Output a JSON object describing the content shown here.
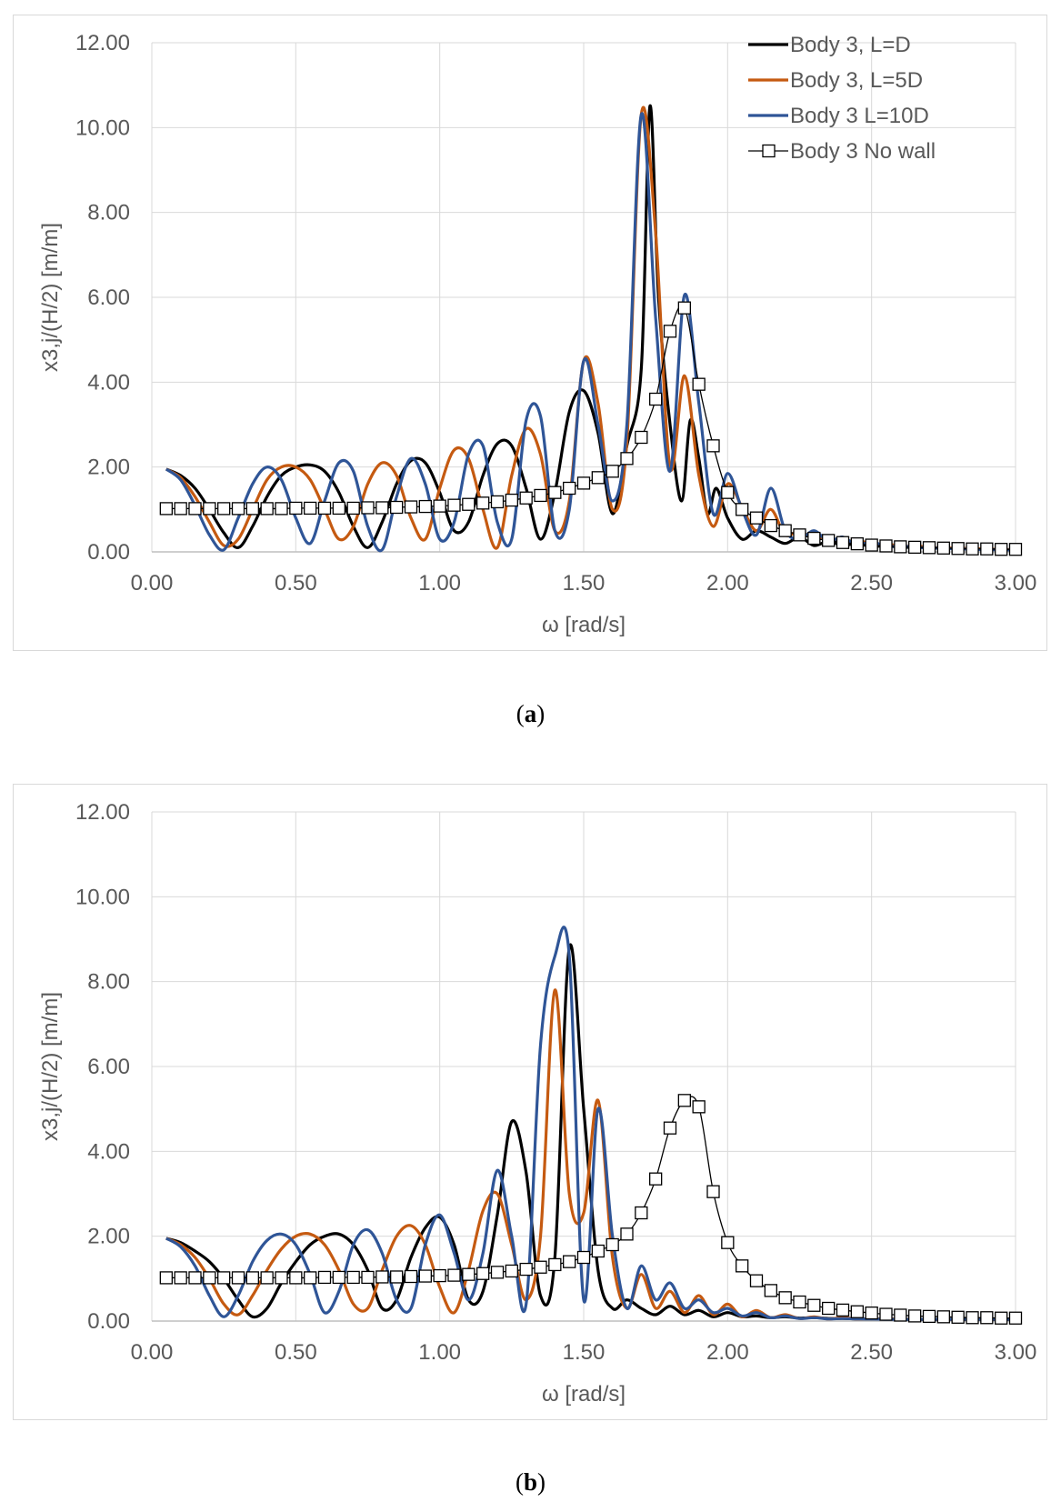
{
  "figure": {
    "caption_a": "a",
    "caption_b": "b"
  },
  "chart_data": [
    {
      "type": "line",
      "panel": "a",
      "title": "",
      "xlabel": "ω  [rad/s]",
      "ylabel": "x3,j/(H/2)  [m/m]",
      "xlim": [
        0,
        3
      ],
      "ylim": [
        0,
        12
      ],
      "xticks": [
        "0.00",
        "0.50",
        "1.00",
        "1.50",
        "2.00",
        "2.50",
        "3.00"
      ],
      "yticks": [
        "0.00",
        "2.00",
        "4.00",
        "6.00",
        "8.00",
        "10.00",
        "12.00"
      ],
      "grid": true,
      "legend_position": "top-right",
      "series": [
        {
          "name": "Body 3, L=D",
          "color": "#000000",
          "x": [
            0.05,
            0.1,
            0.15,
            0.2,
            0.25,
            0.3,
            0.35,
            0.4,
            0.45,
            0.5,
            0.55,
            0.6,
            0.65,
            0.7,
            0.75,
            0.8,
            0.85,
            0.9,
            0.95,
            1.0,
            1.05,
            1.1,
            1.15,
            1.2,
            1.25,
            1.3,
            1.35,
            1.4,
            1.45,
            1.5,
            1.55,
            1.6,
            1.65,
            1.7,
            1.73,
            1.76,
            1.8,
            1.84,
            1.87,
            1.9,
            1.93,
            1.96,
            2.0,
            2.05,
            2.1,
            2.15,
            2.2,
            2.25,
            2.3,
            2.35,
            2.4,
            2.45,
            2.5,
            2.55,
            2.6,
            2.65,
            2.7,
            2.75,
            2.8,
            2.85,
            2.9,
            2.95,
            3.0
          ],
          "y": [
            1.95,
            1.8,
            1.5,
            1.0,
            0.45,
            0.1,
            0.6,
            1.3,
            1.8,
            2.0,
            2.05,
            1.9,
            1.4,
            0.6,
            0.1,
            0.7,
            1.6,
            2.15,
            2.1,
            1.4,
            0.5,
            0.7,
            1.8,
            2.55,
            2.5,
            1.5,
            0.3,
            1.4,
            3.3,
            3.8,
            2.8,
            0.9,
            2.5,
            4.3,
            10.5,
            6.0,
            3.0,
            1.2,
            3.1,
            2.2,
            0.9,
            1.5,
            0.8,
            0.3,
            0.5,
            0.35,
            0.2,
            0.35,
            0.15,
            0.25,
            0.15,
            0.2,
            0.12,
            0.15,
            0.1,
            0.12,
            0.08,
            0.1,
            0.07,
            0.08,
            0.06,
            0.06,
            0.05
          ]
        },
        {
          "name": "Body 3, L=5D",
          "color": "#C55A11",
          "x": [
            0.05,
            0.1,
            0.15,
            0.2,
            0.25,
            0.3,
            0.35,
            0.4,
            0.45,
            0.5,
            0.55,
            0.6,
            0.65,
            0.7,
            0.75,
            0.8,
            0.85,
            0.9,
            0.95,
            1.0,
            1.05,
            1.1,
            1.15,
            1.2,
            1.25,
            1.3,
            1.35,
            1.4,
            1.45,
            1.5,
            1.55,
            1.6,
            1.65,
            1.7,
            1.75,
            1.8,
            1.85,
            1.9,
            1.95,
            2.0,
            2.05,
            2.1,
            2.15,
            2.2,
            2.25,
            2.3,
            2.35,
            2.4,
            2.45,
            2.5,
            2.55,
            2.6,
            2.65,
            2.7,
            2.75,
            2.8,
            2.85,
            2.9,
            2.95,
            3.0
          ],
          "y": [
            1.95,
            1.75,
            1.3,
            0.7,
            0.15,
            0.3,
            1.0,
            1.7,
            2.0,
            2.0,
            1.7,
            1.0,
            0.3,
            0.6,
            1.6,
            2.1,
            1.8,
            0.8,
            0.3,
            1.5,
            2.4,
            2.2,
            1.0,
            0.1,
            1.8,
            2.9,
            2.3,
            0.5,
            1.2,
            4.5,
            3.5,
            1.0,
            2.6,
            10.3,
            7.5,
            2.0,
            4.15,
            1.8,
            0.6,
            1.6,
            1.05,
            0.5,
            1.0,
            0.4,
            0.5,
            0.3,
            0.35,
            0.2,
            0.3,
            0.15,
            0.2,
            0.12,
            0.15,
            0.1,
            0.1,
            0.08,
            0.08,
            0.06,
            0.06,
            0.05
          ]
        },
        {
          "name": "Body 3 L=10D",
          "color": "#2F5597",
          "x": [
            0.05,
            0.1,
            0.15,
            0.2,
            0.25,
            0.3,
            0.35,
            0.4,
            0.45,
            0.5,
            0.55,
            0.6,
            0.65,
            0.7,
            0.75,
            0.8,
            0.85,
            0.9,
            0.95,
            1.0,
            1.05,
            1.1,
            1.15,
            1.2,
            1.25,
            1.3,
            1.35,
            1.4,
            1.45,
            1.5,
            1.55,
            1.6,
            1.65,
            1.7,
            1.75,
            1.8,
            1.85,
            1.9,
            1.95,
            2.0,
            2.05,
            2.1,
            2.15,
            2.2,
            2.25,
            2.3,
            2.35,
            2.4,
            2.45,
            2.5,
            2.55,
            2.6,
            2.65,
            2.7,
            2.75,
            2.8,
            2.85,
            2.9,
            2.95,
            3.0
          ],
          "y": [
            1.95,
            1.7,
            1.1,
            0.4,
            0.05,
            0.8,
            1.6,
            2.0,
            1.7,
            0.8,
            0.2,
            1.2,
            2.1,
            1.9,
            0.6,
            0.05,
            1.3,
            2.2,
            1.6,
            0.3,
            0.7,
            2.3,
            2.5,
            0.7,
            0.3,
            3.1,
            3.2,
            0.5,
            1.0,
            4.5,
            3.0,
            1.2,
            3.0,
            10.3,
            5.5,
            1.9,
            6.05,
            3.5,
            0.9,
            1.85,
            1.0,
            0.4,
            1.5,
            0.5,
            0.3,
            0.5,
            0.25,
            0.35,
            0.15,
            0.25,
            0.12,
            0.15,
            0.1,
            0.1,
            0.08,
            0.07,
            0.06,
            0.05,
            0.05,
            0.04
          ]
        },
        {
          "name": "Body 3 No wall",
          "color": "#000000",
          "marker": "square",
          "x": [
            0.05,
            0.1,
            0.15,
            0.2,
            0.25,
            0.3,
            0.35,
            0.4,
            0.45,
            0.5,
            0.55,
            0.6,
            0.65,
            0.7,
            0.75,
            0.8,
            0.85,
            0.9,
            0.95,
            1.0,
            1.05,
            1.1,
            1.15,
            1.2,
            1.25,
            1.3,
            1.35,
            1.4,
            1.45,
            1.5,
            1.55,
            1.6,
            1.65,
            1.7,
            1.75,
            1.8,
            1.85,
            1.9,
            1.95,
            2.0,
            2.05,
            2.1,
            2.15,
            2.2,
            2.25,
            2.3,
            2.35,
            2.4,
            2.45,
            2.5,
            2.55,
            2.6,
            2.65,
            2.7,
            2.75,
            2.8,
            2.85,
            2.9,
            2.95,
            3.0
          ],
          "y": [
            1.02,
            1.02,
            1.02,
            1.02,
            1.02,
            1.02,
            1.02,
            1.02,
            1.02,
            1.03,
            1.03,
            1.03,
            1.03,
            1.03,
            1.04,
            1.04,
            1.05,
            1.06,
            1.07,
            1.08,
            1.1,
            1.12,
            1.15,
            1.18,
            1.22,
            1.27,
            1.33,
            1.4,
            1.5,
            1.62,
            1.75,
            1.9,
            2.2,
            2.7,
            3.6,
            5.2,
            5.75,
            3.95,
            2.5,
            1.4,
            1.0,
            0.8,
            0.62,
            0.5,
            0.4,
            0.32,
            0.27,
            0.22,
            0.19,
            0.16,
            0.14,
            0.12,
            0.11,
            0.1,
            0.09,
            0.08,
            0.07,
            0.07,
            0.06,
            0.06
          ]
        }
      ]
    },
    {
      "type": "line",
      "panel": "b",
      "title": "",
      "xlabel": "ω  [rad/s]",
      "ylabel": "x3,j/(H/2)  [m/m]",
      "xlim": [
        0,
        3
      ],
      "ylim": [
        0,
        12
      ],
      "xticks": [
        "0.00",
        "0.50",
        "1.00",
        "1.50",
        "2.00",
        "2.50",
        "3.00"
      ],
      "yticks": [
        "0.00",
        "2.00",
        "4.00",
        "6.00",
        "8.00",
        "10.00",
        "12.00"
      ],
      "grid": true,
      "legend_position": "none",
      "series": [
        {
          "name": "Body 3, L=D",
          "color": "#000000",
          "x": [
            0.05,
            0.1,
            0.15,
            0.2,
            0.25,
            0.3,
            0.35,
            0.4,
            0.45,
            0.5,
            0.55,
            0.6,
            0.65,
            0.7,
            0.75,
            0.8,
            0.85,
            0.9,
            0.95,
            1.0,
            1.05,
            1.1,
            1.15,
            1.2,
            1.25,
            1.3,
            1.35,
            1.4,
            1.45,
            1.5,
            1.55,
            1.6,
            1.65,
            1.7,
            1.75,
            1.8,
            1.85,
            1.9,
            1.95,
            2.0,
            2.05,
            2.1,
            2.15,
            2.2,
            2.25,
            2.3,
            2.35,
            2.4,
            2.45,
            2.5,
            2.55,
            2.6,
            2.65,
            2.7,
            2.75,
            2.8,
            2.85,
            2.9,
            2.95,
            3.0
          ],
          "y": [
            1.95,
            1.85,
            1.65,
            1.4,
            1.0,
            0.5,
            0.1,
            0.3,
            0.9,
            1.4,
            1.8,
            2.0,
            2.05,
            1.8,
            1.2,
            0.3,
            0.5,
            1.5,
            2.2,
            2.45,
            1.8,
            0.5,
            0.7,
            2.5,
            4.7,
            3.5,
            0.6,
            1.5,
            8.8,
            5.0,
            1.2,
            0.3,
            0.5,
            0.3,
            0.15,
            0.35,
            0.15,
            0.25,
            0.1,
            0.2,
            0.1,
            0.12,
            0.08,
            0.1,
            0.07,
            0.08,
            0.06,
            0.06,
            0.05,
            0.05,
            0.05,
            0.04,
            0.04,
            0.04,
            0.04,
            0.04,
            0.04,
            0.04,
            0.04,
            0.04
          ]
        },
        {
          "name": "Body 3, L=5D",
          "color": "#C55A11",
          "x": [
            0.05,
            0.1,
            0.15,
            0.2,
            0.25,
            0.3,
            0.35,
            0.4,
            0.45,
            0.5,
            0.55,
            0.6,
            0.65,
            0.7,
            0.75,
            0.8,
            0.85,
            0.9,
            0.95,
            1.0,
            1.05,
            1.1,
            1.15,
            1.2,
            1.25,
            1.3,
            1.35,
            1.4,
            1.45,
            1.5,
            1.55,
            1.6,
            1.65,
            1.7,
            1.75,
            1.8,
            1.85,
            1.9,
            1.95,
            2.0,
            2.05,
            2.1,
            2.15,
            2.2,
            2.25,
            2.3,
            2.35,
            2.4,
            2.45,
            2.5,
            2.55,
            2.6,
            2.65,
            2.7,
            2.75,
            2.8,
            2.85,
            2.9,
            2.95,
            3.0
          ],
          "y": [
            1.95,
            1.8,
            1.5,
            1.0,
            0.4,
            0.15,
            0.6,
            1.2,
            1.7,
            2.0,
            2.05,
            1.8,
            1.2,
            0.4,
            0.3,
            1.2,
            2.0,
            2.25,
            1.8,
            0.8,
            0.2,
            1.2,
            2.6,
            3.0,
            1.8,
            0.5,
            2.0,
            7.8,
            3.0,
            2.55,
            5.2,
            1.5,
            0.3,
            1.1,
            0.3,
            0.7,
            0.2,
            0.6,
            0.15,
            0.4,
            0.1,
            0.25,
            0.08,
            0.15,
            0.06,
            0.1,
            0.05,
            0.08,
            0.05,
            0.06,
            0.05,
            0.05,
            0.04,
            0.04,
            0.04,
            0.04,
            0.04,
            0.04,
            0.04,
            0.04
          ]
        },
        {
          "name": "Body 3 L=10D",
          "color": "#2F5597",
          "x": [
            0.05,
            0.1,
            0.15,
            0.2,
            0.25,
            0.3,
            0.35,
            0.4,
            0.45,
            0.5,
            0.55,
            0.6,
            0.65,
            0.7,
            0.75,
            0.8,
            0.85,
            0.9,
            0.95,
            1.0,
            1.05,
            1.1,
            1.15,
            1.2,
            1.25,
            1.3,
            1.35,
            1.4,
            1.45,
            1.5,
            1.55,
            1.6,
            1.65,
            1.7,
            1.75,
            1.8,
            1.85,
            1.9,
            1.95,
            2.0,
            2.05,
            2.1,
            2.15,
            2.2,
            2.25,
            2.3,
            2.35,
            2.4,
            2.45,
            2.5,
            2.55,
            2.6,
            2.65,
            2.7,
            2.75,
            2.8,
            2.85,
            2.9,
            2.95,
            3.0
          ],
          "y": [
            1.95,
            1.75,
            1.3,
            0.6,
            0.1,
            0.6,
            1.4,
            1.9,
            2.05,
            1.8,
            1.1,
            0.2,
            0.7,
            1.8,
            2.15,
            1.6,
            0.5,
            0.3,
            1.8,
            2.5,
            1.6,
            0.5,
            1.6,
            3.55,
            2.0,
            0.4,
            6.5,
            8.6,
            8.6,
            0.5,
            5.0,
            2.0,
            0.3,
            1.3,
            0.5,
            0.9,
            0.3,
            0.5,
            0.2,
            0.3,
            0.12,
            0.2,
            0.08,
            0.12,
            0.06,
            0.08,
            0.05,
            0.06,
            0.05,
            0.05,
            0.04,
            0.04,
            0.04,
            0.04,
            0.04,
            0.04,
            0.04,
            0.04,
            0.04,
            0.04
          ]
        },
        {
          "name": "Body 3 No wall",
          "color": "#000000",
          "marker": "square",
          "x": [
            0.05,
            0.1,
            0.15,
            0.2,
            0.25,
            0.3,
            0.35,
            0.4,
            0.45,
            0.5,
            0.55,
            0.6,
            0.65,
            0.7,
            0.75,
            0.8,
            0.85,
            0.9,
            0.95,
            1.0,
            1.05,
            1.1,
            1.15,
            1.2,
            1.25,
            1.3,
            1.35,
            1.4,
            1.45,
            1.5,
            1.55,
            1.6,
            1.65,
            1.7,
            1.75,
            1.8,
            1.85,
            1.9,
            1.95,
            2.0,
            2.05,
            2.1,
            2.15,
            2.2,
            2.25,
            2.3,
            2.35,
            2.4,
            2.45,
            2.5,
            2.55,
            2.6,
            2.65,
            2.7,
            2.75,
            2.8,
            2.85,
            2.9,
            2.95,
            3.0
          ],
          "y": [
            1.02,
            1.02,
            1.02,
            1.02,
            1.02,
            1.02,
            1.02,
            1.02,
            1.02,
            1.02,
            1.02,
            1.03,
            1.03,
            1.03,
            1.03,
            1.04,
            1.04,
            1.05,
            1.06,
            1.07,
            1.08,
            1.1,
            1.12,
            1.15,
            1.18,
            1.22,
            1.27,
            1.33,
            1.4,
            1.5,
            1.65,
            1.8,
            2.05,
            2.55,
            3.35,
            4.55,
            5.2,
            5.05,
            3.05,
            1.85,
            1.3,
            0.95,
            0.72,
            0.55,
            0.45,
            0.37,
            0.3,
            0.26,
            0.22,
            0.19,
            0.16,
            0.14,
            0.12,
            0.11,
            0.1,
            0.09,
            0.08,
            0.08,
            0.07,
            0.07
          ]
        }
      ]
    }
  ]
}
